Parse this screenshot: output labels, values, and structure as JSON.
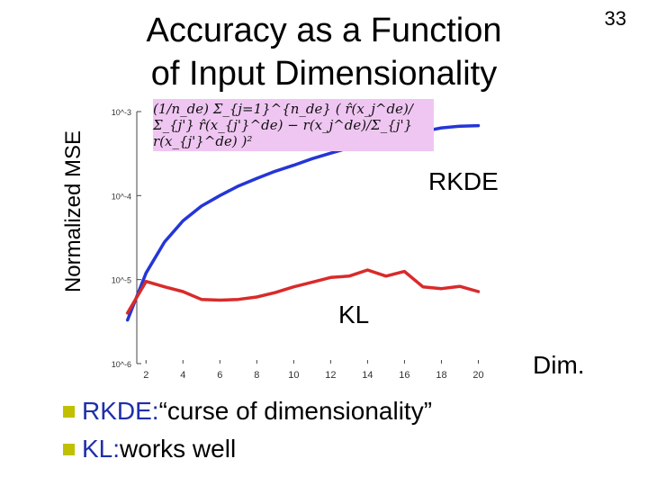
{
  "slide": {
    "title_line1": "Accuracy as a Function",
    "title_line2": "of Input Dimensionality",
    "page_number": "33",
    "formula": "(1/n_de) Σ_{j=1}^{n_de} ( r̂(x_j^de)/Σ_{j'} r̂(x_{j'}^de) − r(x_j^de)/Σ_{j'} r(x_{j'}^de) )²",
    "series_label_rkde": "RKDE",
    "series_label_kl": "KL",
    "xaxis_label": "Dim.",
    "bullets": [
      {
        "keyword": "RKDE:",
        "text": " “curse of dimensionality”"
      },
      {
        "keyword": "KL:",
        "text": " works well"
      }
    ]
  },
  "colors": {
    "rkde": "#2436d6",
    "kl": "#d92a2a",
    "bullet": "#c0c000",
    "keyword": "#1f2fa8",
    "formula_bg": "#efc6f2"
  },
  "chart_data": {
    "type": "line",
    "ylabel": "Normalized MSE",
    "xlabel": "Dim.",
    "yscale": "log",
    "xlim": [
      1.5,
      21
    ],
    "ylim": [
      1e-06,
      0.001
    ],
    "xticks": [
      2,
      4,
      6,
      8,
      10,
      12,
      14,
      16,
      18,
      20
    ],
    "ytick_labels": [
      "10^-3",
      "10^-4",
      "10^-5",
      "10^-6"
    ],
    "yticks": [
      0.001,
      0.0001,
      1e-05,
      1e-06
    ],
    "series": [
      {
        "name": "RKDE",
        "color": "#2436d6",
        "x": [
          1,
          2,
          3,
          4,
          5,
          6,
          7,
          8,
          9,
          10,
          11,
          12,
          13,
          14,
          15,
          16,
          17,
          18,
          19,
          20
        ],
        "y": [
          3.3e-06,
          1.2e-05,
          2.8e-05,
          5e-05,
          7.5e-05,
          0.0001,
          0.00013,
          0.00016,
          0.000195,
          0.00023,
          0.000275,
          0.00032,
          0.00037,
          0.00042,
          0.00046,
          0.00052,
          0.00058,
          0.00064,
          0.00067,
          0.00068
        ]
      },
      {
        "name": "KL",
        "color": "#d92a2a",
        "x": [
          1,
          2,
          3,
          4,
          5,
          6,
          7,
          8,
          9,
          10,
          11,
          12,
          13,
          14,
          15,
          16,
          17,
          18,
          19,
          20
        ],
        "y": [
          4e-06,
          9.5e-06,
          8.2e-06,
          7.2e-06,
          5.8e-06,
          5.7e-06,
          5.8e-06,
          6.2e-06,
          7e-06,
          8.2e-06,
          9.3e-06,
          1.06e-05,
          1.1e-05,
          1.3e-05,
          1.1e-05,
          1.25e-05,
          8.2e-06,
          7.8e-06,
          8.3e-06,
          7.2e-06
        ]
      }
    ]
  }
}
